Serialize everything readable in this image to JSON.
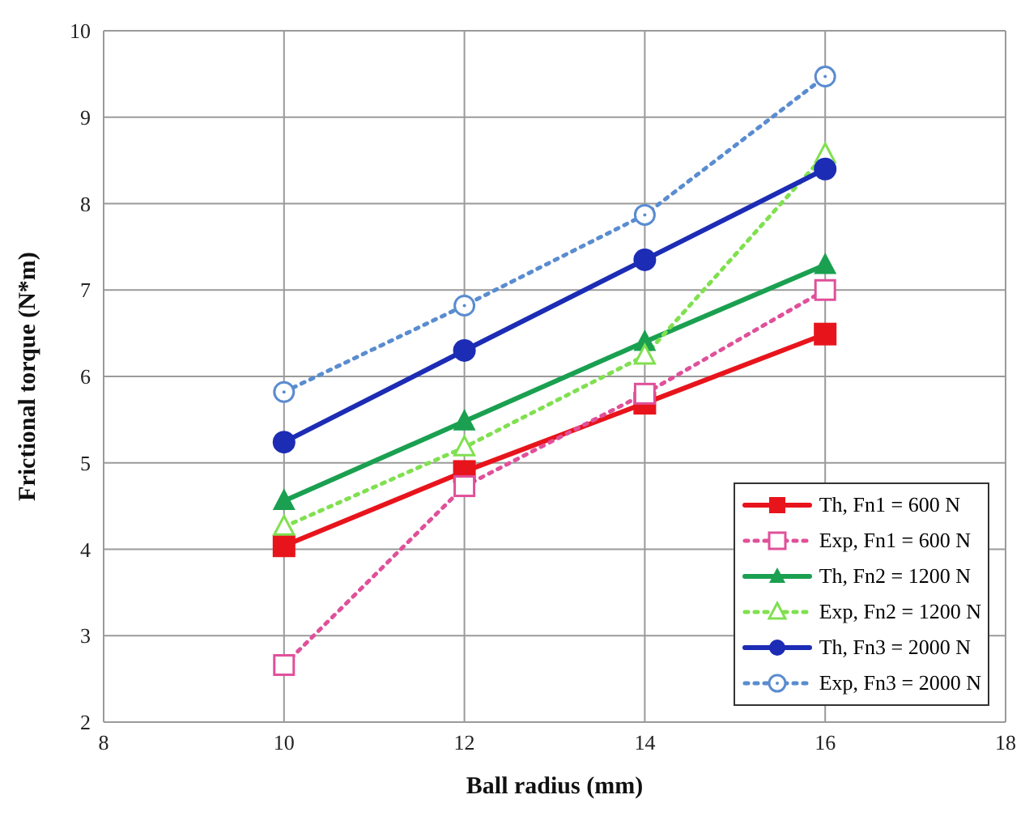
{
  "chart_data": {
    "type": "line",
    "xlabel": "Ball radius (mm)",
    "ylabel": "Frictional torque (N*m)",
    "x": [
      10,
      12,
      14,
      16
    ],
    "xlim": [
      8,
      18
    ],
    "xticks": [
      8,
      10,
      12,
      14,
      16,
      18
    ],
    "ylim": [
      2,
      10
    ],
    "yticks": [
      2,
      3,
      4,
      5,
      6,
      7,
      8,
      9,
      10
    ],
    "grid": true,
    "legend": "bottom right",
    "series": [
      {
        "name": "Th, Fn1 = 600 N",
        "color": "#e8141c",
        "marker": "square",
        "line_style": "solid",
        "values": [
          4.04,
          4.9,
          5.69,
          6.49
        ]
      },
      {
        "name": "Exp, Fn1 = 600 N",
        "color": "#e0509a",
        "marker": "square",
        "line_style": "dotted",
        "values": [
          2.66,
          4.73,
          5.8,
          7.0
        ]
      },
      {
        "name": "Th, Fn2 = 1200 N",
        "color": "#1aa050",
        "marker": "triangle",
        "line_style": "solid",
        "values": [
          4.56,
          5.48,
          6.4,
          7.29
        ]
      },
      {
        "name": "Exp, Fn2 = 1200 N",
        "color": "#80e050",
        "marker": "triangle",
        "line_style": "dotted",
        "values": [
          4.26,
          5.18,
          6.24,
          8.57
        ]
      },
      {
        "name": "Th, Fn3 = 2000 N",
        "color": "#1c2cb4",
        "marker": "circle",
        "line_style": "solid",
        "values": [
          5.24,
          6.3,
          7.35,
          8.4
        ]
      },
      {
        "name": "Exp, Fn3 = 2000 N",
        "color": "#5a8cd0",
        "marker": "circle",
        "line_style": "dotted",
        "values": [
          5.82,
          6.82,
          7.87,
          9.47
        ]
      }
    ]
  }
}
